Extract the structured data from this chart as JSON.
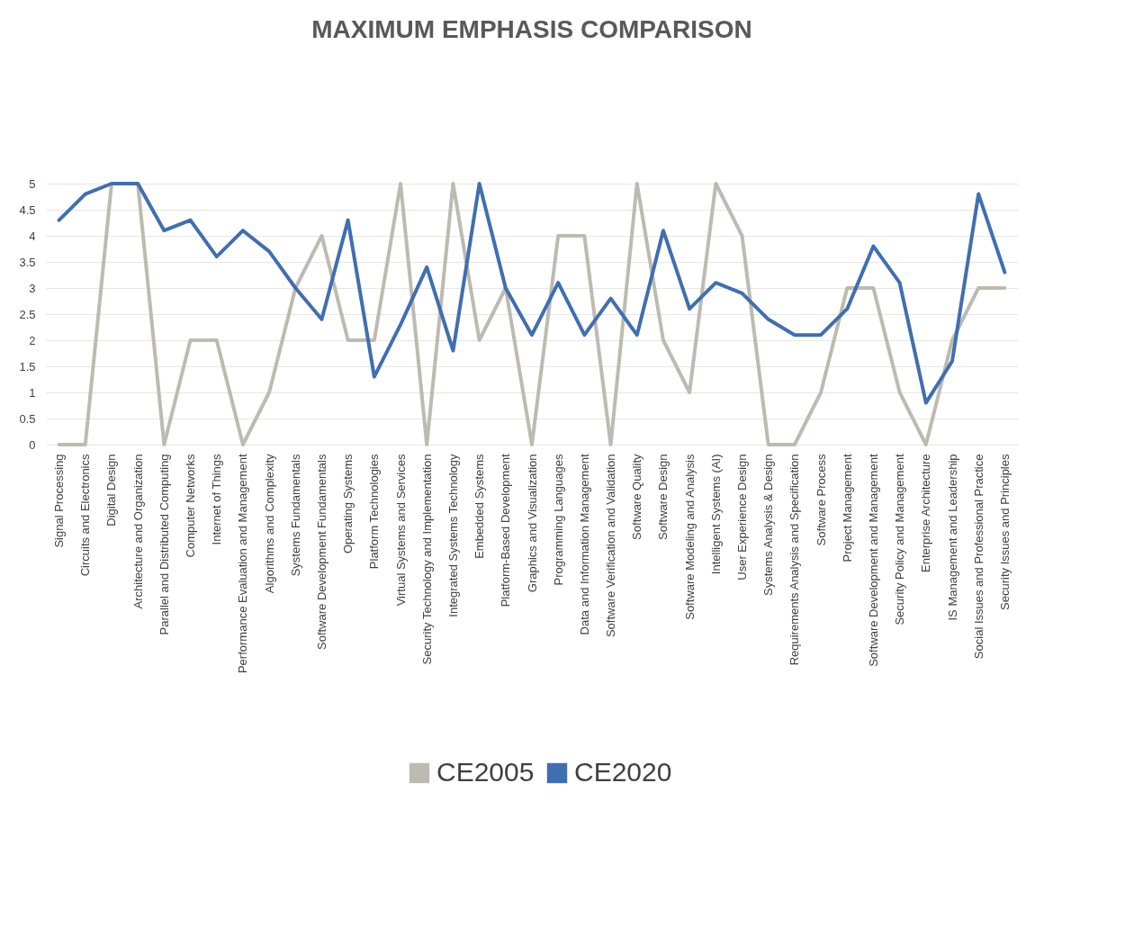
{
  "chart_data": {
    "type": "line",
    "title": "MAXIMUM EMPHASIS COMPARISON",
    "categories": [
      "Signal Processing",
      "Circuits and Electronics",
      "Digital Design",
      "Architecture and Organization",
      "Parallel and Distributed Computing",
      "Computer Networks",
      "Internet of Things",
      "Performance Evaluation and Management",
      "Algorithms and Complexity",
      "Systems Fundamentals",
      "Software Development Fundamentals",
      "Operating Systems",
      "Platform Technologies",
      "Virtual Systems and Services",
      "Security Technology and Implementation",
      "Integrated Systems Technology",
      "Embedded Systems",
      "Platform-Based Development",
      "Graphics and Visualization",
      "Programming Languages",
      "Data and Information Management",
      "Software Verification and Validation",
      "Software Quality",
      "Software Design",
      "Software Modeling and Analysis",
      "Intelligent Systems (AI)",
      "User Experience Design",
      "Systems Analysis & Design",
      "Requirements Analysis and Specification",
      "Software Process",
      "Project Management",
      "Software Development and Management",
      "Security Policy and Management",
      "Enterprise Architecture",
      "IS Management and Leadership",
      "Social Issues and Professional Practice",
      "Security Issues and Principles"
    ],
    "series": [
      {
        "name": "CE2005",
        "color": "#bdbbb1",
        "values": [
          0,
          0,
          5,
          5,
          0,
          2,
          2,
          0,
          1,
          3,
          4,
          2,
          2,
          5,
          0,
          5,
          2,
          3,
          0,
          4,
          4,
          0,
          5,
          2,
          1,
          5,
          4,
          0,
          0,
          1,
          3,
          3,
          1,
          0,
          2,
          3,
          3
        ]
      },
      {
        "name": "CE2020",
        "color": "#3f6fb0",
        "values": [
          4.3,
          4.8,
          5,
          5,
          4.1,
          4.3,
          3.6,
          4.1,
          3.7,
          3,
          2.4,
          4.3,
          1.3,
          2.3,
          3.4,
          1.8,
          5,
          3,
          2.1,
          3.1,
          2.1,
          2.8,
          2.1,
          4.1,
          2.6,
          3.1,
          2.9,
          2.4,
          2.1,
          2.1,
          2.6,
          3.8,
          3.1,
          0.8,
          1.6,
          4.8,
          3.3
        ]
      }
    ],
    "ylim": [
      0,
      5
    ],
    "yticks": [
      0,
      0.5,
      1,
      1.5,
      2,
      2.5,
      3,
      3.5,
      4,
      4.5,
      5
    ],
    "grid": "y",
    "legend": "bottom",
    "line_style": "solid"
  }
}
